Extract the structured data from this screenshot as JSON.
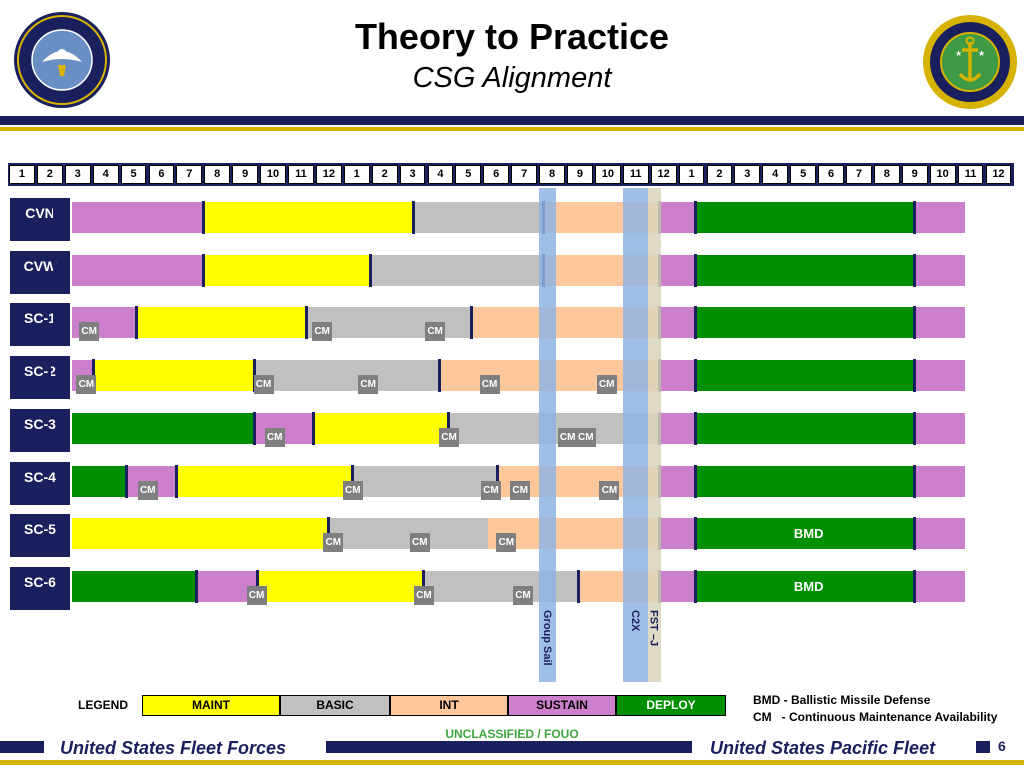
{
  "header": {
    "title": "Theory to Practice",
    "subtitle": "CSG Alignment",
    "left_seal_text": "UNITED STATES FLEET FORCES COMMAND",
    "right_seal_top": "COMMANDER",
    "right_seal_bottom": "UNITED STATES PACIFIC FLEET"
  },
  "months": [
    "1",
    "2",
    "3",
    "4",
    "5",
    "6",
    "7",
    "8",
    "9",
    "10",
    "11",
    "12",
    "1",
    "2",
    "3",
    "4",
    "5",
    "6",
    "7",
    "8",
    "9",
    "10",
    "11",
    "12",
    "1",
    "2",
    "3",
    "4",
    "5",
    "6",
    "7",
    "8",
    "9",
    "10",
    "11",
    "12"
  ],
  "colors": {
    "MAINT": "#ffff00",
    "BASIC": "#c0c0c0",
    "INT": "#fcc89b",
    "SUSTAIN": "#cc80cc",
    "DEPLOY": "#008f00",
    "navy": "#1a1f5e",
    "gold": "#d6b300"
  },
  "rows": [
    {
      "unit": "CVN",
      "segments": [
        {
          "phase": "DEPLOY",
          "start": 1,
          "end": 2.65
        },
        {
          "phase": "SUSTAIN",
          "start": 2.65,
          "end": 8.0
        },
        {
          "phase": "MAINT",
          "start": 8.0,
          "end": 15.55
        },
        {
          "phase": "BASIC",
          "start": 15.55,
          "end": 20.2
        },
        {
          "phase": "INT",
          "start": 20.2,
          "end": 24.35
        },
        {
          "phase": "SUSTAIN",
          "start": 24.35,
          "end": 25.65
        },
        {
          "phase": "DEPLOY",
          "start": 25.65,
          "end": 33.5
        },
        {
          "phase": "SUSTAIN",
          "start": 33.5,
          "end": 35.3
        }
      ],
      "separators": [
        2.65,
        8.0,
        15.55,
        20.2,
        24.35,
        25.65,
        33.5
      ],
      "cm": [],
      "label": ""
    },
    {
      "unit": "CVW",
      "segments": [
        {
          "phase": "DEPLOY",
          "start": 1,
          "end": 2.65
        },
        {
          "phase": "SUSTAIN",
          "start": 2.65,
          "end": 8.0
        },
        {
          "phase": "MAINT",
          "start": 8.0,
          "end": 14.0
        },
        {
          "phase": "BASIC",
          "start": 14.0,
          "end": 20.2
        },
        {
          "phase": "INT",
          "start": 20.2,
          "end": 24.35
        },
        {
          "phase": "SUSTAIN",
          "start": 24.35,
          "end": 25.65
        },
        {
          "phase": "DEPLOY",
          "start": 25.65,
          "end": 33.5
        },
        {
          "phase": "SUSTAIN",
          "start": 33.5,
          "end": 35.3
        }
      ],
      "separators": [
        2.65,
        8.0,
        14.0,
        20.2,
        24.35,
        25.65,
        33.5
      ],
      "cm": [],
      "label": ""
    },
    {
      "unit": "SC-1",
      "segments": [
        {
          "phase": "DEPLOY",
          "start": 1,
          "end": 2.65
        },
        {
          "phase": "SUSTAIN",
          "start": 2.65,
          "end": 5.6
        },
        {
          "phase": "MAINT",
          "start": 5.6,
          "end": 11.7
        },
        {
          "phase": "BASIC",
          "start": 11.7,
          "end": 17.6
        },
        {
          "phase": "INT",
          "start": 17.6,
          "end": 24.35
        },
        {
          "phase": "SUSTAIN",
          "start": 24.35,
          "end": 25.65
        },
        {
          "phase": "DEPLOY",
          "start": 25.65,
          "end": 33.5
        },
        {
          "phase": "SUSTAIN",
          "start": 33.5,
          "end": 35.3
        }
      ],
      "separators": [
        2.65,
        5.6,
        11.7,
        17.6,
        24.35,
        25.65,
        33.5
      ],
      "cm": [
        3.55,
        11.9,
        15.95
      ],
      "label": ""
    },
    {
      "unit": "SC-2",
      "segments": [
        {
          "phase": "DEPLOY",
          "start": 1,
          "end": 2.5
        },
        {
          "phase": "SUSTAIN",
          "start": 2.5,
          "end": 4.05
        },
        {
          "phase": "MAINT",
          "start": 4.05,
          "end": 9.85
        },
        {
          "phase": "BASIC",
          "start": 9.85,
          "end": 16.45
        },
        {
          "phase": "INT",
          "start": 16.45,
          "end": 24.35
        },
        {
          "phase": "SUSTAIN",
          "start": 24.35,
          "end": 25.65
        },
        {
          "phase": "DEPLOY",
          "start": 25.65,
          "end": 33.5
        },
        {
          "phase": "SUSTAIN",
          "start": 33.5,
          "end": 35.3
        }
      ],
      "separators": [
        2.5,
        4.05,
        9.85,
        16.45,
        24.35,
        25.65,
        33.5
      ],
      "cm": [
        3.45,
        9.8,
        13.55,
        17.9,
        22.1
      ],
      "label": ""
    },
    {
      "unit": "SC-3",
      "segments": [
        {
          "phase": "DEPLOY",
          "start": 1,
          "end": 9.85
        },
        {
          "phase": "SUSTAIN",
          "start": 9.85,
          "end": 11.95
        },
        {
          "phase": "MAINT",
          "start": 11.95,
          "end": 16.8
        },
        {
          "phase": "BASIC",
          "start": 16.8,
          "end": 24.35
        },
        {
          "phase": "SUSTAIN",
          "start": 24.35,
          "end": 25.65
        },
        {
          "phase": "DEPLOY",
          "start": 25.65,
          "end": 33.5
        },
        {
          "phase": "SUSTAIN",
          "start": 33.5,
          "end": 35.3
        }
      ],
      "separators": [
        9.85,
        11.95,
        16.8,
        24.35,
        25.65,
        33.5
      ],
      "cm": [
        10.2,
        16.45,
        20.7,
        21.35
      ],
      "label": ""
    },
    {
      "unit": "SC-4",
      "segments": [
        {
          "phase": "DEPLOY",
          "start": 1,
          "end": 5.25
        },
        {
          "phase": "SUSTAIN",
          "start": 5.25,
          "end": 7.05
        },
        {
          "phase": "MAINT",
          "start": 7.05,
          "end": 13.35
        },
        {
          "phase": "BASIC",
          "start": 13.35,
          "end": 18.55
        },
        {
          "phase": "INT",
          "start": 18.55,
          "end": 24.35
        },
        {
          "phase": "SUSTAIN",
          "start": 24.35,
          "end": 25.65
        },
        {
          "phase": "DEPLOY",
          "start": 25.65,
          "end": 33.5
        },
        {
          "phase": "SUSTAIN",
          "start": 33.5,
          "end": 35.3
        }
      ],
      "separators": [
        5.25,
        7.05,
        13.35,
        18.55,
        24.35,
        25.65,
        33.5
      ],
      "cm": [
        5.65,
        13.0,
        17.95,
        19.0,
        22.2
      ],
      "label": ""
    },
    {
      "unit": "SC-5",
      "segments": [
        {
          "phase": "MAINT",
          "start": 1,
          "end": 12.5
        },
        {
          "phase": "BASIC",
          "start": 12.5,
          "end": 18.2
        },
        {
          "phase": "INT",
          "start": 18.2,
          "end": 24.35
        },
        {
          "phase": "SUSTAIN",
          "start": 24.35,
          "end": 25.65
        },
        {
          "phase": "DEPLOY",
          "start": 25.65,
          "end": 33.5
        },
        {
          "phase": "SUSTAIN",
          "start": 33.5,
          "end": 35.3
        }
      ],
      "separators": [
        12.5,
        24.35,
        25.65,
        33.5
      ],
      "cm": [
        12.3,
        15.4,
        18.5
      ],
      "label": "BMD"
    },
    {
      "unit": "SC-6",
      "segments": [
        {
          "phase": "DEPLOY",
          "start": 1,
          "end": 7.75
        },
        {
          "phase": "SUSTAIN",
          "start": 7.75,
          "end": 9.95
        },
        {
          "phase": "MAINT",
          "start": 9.95,
          "end": 15.9
        },
        {
          "phase": "BASIC",
          "start": 15.9,
          "end": 21.45
        },
        {
          "phase": "INT",
          "start": 21.45,
          "end": 24.35
        },
        {
          "phase": "SUSTAIN",
          "start": 24.35,
          "end": 25.65
        },
        {
          "phase": "DEPLOY",
          "start": 25.65,
          "end": 33.5
        },
        {
          "phase": "SUSTAIN",
          "start": 33.5,
          "end": 35.3
        }
      ],
      "separators": [
        7.75,
        9.95,
        15.9,
        21.45,
        24.35,
        25.65,
        33.5
      ],
      "cm": [
        9.55,
        15.55,
        19.1
      ],
      "label": "BMD"
    }
  ],
  "events": [
    {
      "label": "Group  Sail",
      "start": 20.05,
      "end": 20.65,
      "color": "#8fb4e3"
    },
    {
      "label": "C2X",
      "start": 23.05,
      "end": 23.95,
      "color": "#8fb4e3"
    },
    {
      "label": "FST –J",
      "start": 23.95,
      "end": 24.4,
      "color": "#d9d4bc"
    }
  ],
  "cm_label": "CM",
  "legend": {
    "title": "LEGEND",
    "items": [
      {
        "label": "MAINT",
        "key": "MAINT"
      },
      {
        "label": "BASIC",
        "key": "BASIC"
      },
      {
        "label": "INT",
        "key": "INT"
      },
      {
        "label": "SUSTAIN",
        "key": "SUSTAIN"
      },
      {
        "label": "DEPLOY",
        "key": "DEPLOY"
      }
    ],
    "notes": [
      "BMD - Ballistic Missile Defense",
      "CM   - Continuous Maintenance Availability"
    ]
  },
  "footer": {
    "classification": "UNCLASSIFIED / FOUO",
    "left": "United States Fleet Forces",
    "right": "United States Pacific Fleet",
    "page": "6"
  }
}
